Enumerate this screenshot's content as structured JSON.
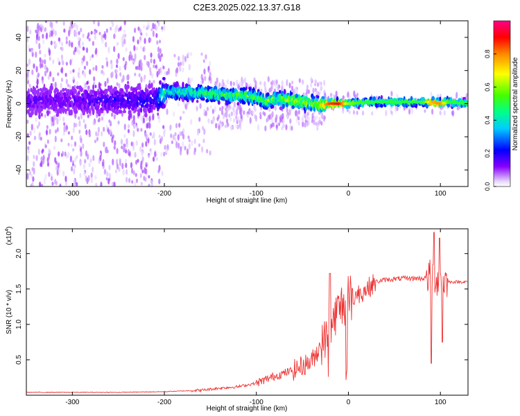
{
  "title": "C2E3.2025.022.13.37.G18",
  "chart_data": [
    {
      "type": "heatmap",
      "xlabel": "Height of straight line (km)",
      "ylabel": "Frequency (Hz)",
      "xlim": [
        -350,
        130
      ],
      "ylim": [
        -50,
        50
      ],
      "xticks": [
        -300,
        -200,
        -100,
        0,
        100
      ],
      "yticks": [
        -40,
        -20,
        0,
        20,
        40
      ],
      "colorbar": {
        "label": "Normalized spectral amplitude",
        "range": [
          0.0,
          1.0
        ],
        "ticks": [
          "0.0",
          "0.2",
          "0.4",
          "0.6",
          "0.8"
        ],
        "colormap": "rainbow (white-violet-blue-cyan-green-yellow-red-magenta)"
      },
      "ridge": {
        "description": "dominant frequency band vs height",
        "x": [
          -350,
          -300,
          -250,
          -210,
          -200,
          -180,
          -150,
          -130,
          -110,
          -100,
          -90,
          -80,
          -60,
          -40,
          -30,
          -20,
          -10,
          0,
          20,
          50,
          80,
          90,
          100,
          110,
          130
        ],
        "frequency": [
          2,
          2,
          2,
          2,
          7,
          7,
          6,
          5,
          5,
          4,
          1,
          3,
          2,
          0,
          -1,
          0,
          0,
          0,
          1,
          1,
          1,
          1,
          0,
          1,
          0
        ],
        "amplitude": [
          0.15,
          0.15,
          0.18,
          0.2,
          0.4,
          0.45,
          0.5,
          0.5,
          0.55,
          0.5,
          0.55,
          0.55,
          0.6,
          0.6,
          0.7,
          0.85,
          0.9,
          0.6,
          0.5,
          0.5,
          0.5,
          0.75,
          0.8,
          0.5,
          0.5
        ]
      }
    },
    {
      "type": "line",
      "xlabel": "Height of straight line (km)",
      "ylabel": "SNR (10 * v/v)",
      "y_multiplier": "(x10",
      "y_multiplier_exp": "4",
      "xlim": [
        -350,
        130
      ],
      "ylim": [
        0,
        2.35
      ],
      "xticks": [
        -300,
        -200,
        -100,
        0,
        100
      ],
      "yticks": [
        "0.5",
        "1.0",
        "1.5",
        "2.0"
      ],
      "color": "#ee3333",
      "series": [
        {
          "x": [
            -350,
            -300,
            -250,
            -200,
            -160,
            -140,
            -120,
            -100,
            -80,
            -60,
            -40,
            -30,
            -20,
            -15,
            -12,
            -8,
            -5,
            0,
            10,
            20,
            30,
            40,
            60,
            80,
            88,
            92,
            95,
            100,
            105,
            110,
            130
          ],
          "values": [
            0.04,
            0.04,
            0.04,
            0.05,
            0.07,
            0.1,
            0.12,
            0.17,
            0.27,
            0.35,
            0.48,
            0.7,
            0.9,
            1.1,
            1.2,
            1.25,
            1.3,
            1.35,
            1.42,
            1.5,
            1.6,
            1.63,
            1.65,
            1.65,
            1.67,
            1.7,
            1.65,
            1.6,
            1.62,
            1.6,
            1.6
          ]
        }
      ]
    }
  ]
}
